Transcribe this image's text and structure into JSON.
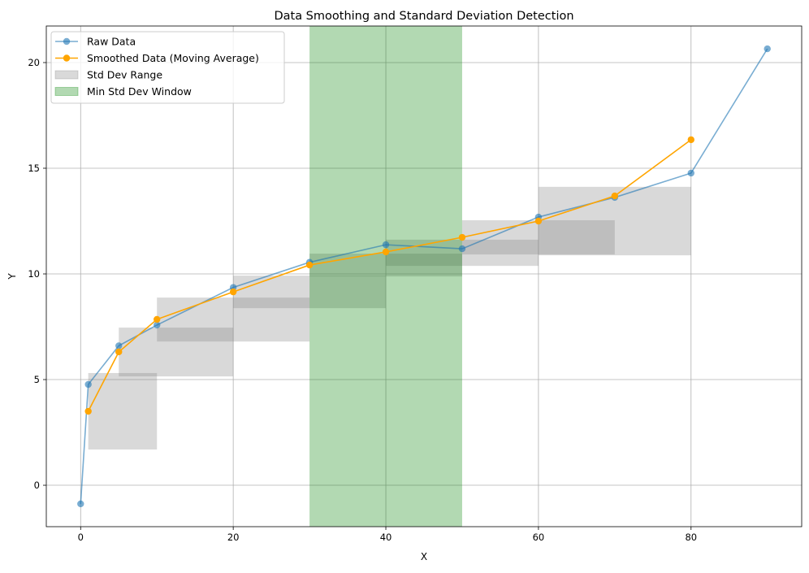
{
  "chart_data": {
    "type": "line",
    "title": "Data Smoothing and Standard Deviation Detection",
    "xlabel": "X",
    "ylabel": "Y",
    "xlim": [
      -4.5,
      94.5
    ],
    "ylim": [
      -1.96,
      21.73
    ],
    "xticks": [
      0,
      20,
      40,
      60,
      80
    ],
    "yticks": [
      0,
      5,
      10,
      15,
      20
    ],
    "grid": true,
    "legend_position": "top-left",
    "series": [
      {
        "name": "Raw Data",
        "color": "#1f77b4",
        "opacity": 0.6,
        "x": [
          0,
          1,
          5,
          10,
          20,
          30,
          40,
          50,
          60,
          70,
          80,
          90
        ],
        "y": [
          -0.88,
          4.77,
          6.6,
          7.58,
          9.36,
          10.55,
          11.38,
          11.19,
          12.69,
          13.62,
          14.77,
          20.65
        ]
      },
      {
        "name": "Smoothed Data (Moving Average)",
        "color": "#ffa500",
        "opacity": 1,
        "x": [
          1,
          5,
          10,
          20,
          30,
          40,
          50,
          60,
          70,
          80
        ],
        "y": [
          3.5,
          6.31,
          7.85,
          9.15,
          10.42,
          11.04,
          11.73,
          12.5,
          13.69,
          16.35
        ]
      }
    ],
    "std_dev_ranges": {
      "name": "Std Dev Range",
      "color": "#808080",
      "opacity": 0.3,
      "ranges": [
        {
          "x0": 1,
          "x1": 10,
          "y0": 1.69,
          "y1": 5.31
        },
        {
          "x0": 5,
          "x1": 20,
          "y0": 5.15,
          "y1": 7.46
        },
        {
          "x0": 10,
          "x1": 30,
          "y0": 6.8,
          "y1": 8.88
        },
        {
          "x0": 20,
          "x1": 40,
          "y0": 8.38,
          "y1": 9.92
        },
        {
          "x0": 30,
          "x1": 50,
          "y0": 9.88,
          "y1": 10.96
        },
        {
          "x0": 40,
          "x1": 60,
          "y0": 10.38,
          "y1": 11.62
        },
        {
          "x0": 50,
          "x1": 70,
          "y0": 10.92,
          "y1": 12.54
        },
        {
          "x0": 60,
          "x1": 80,
          "y0": 10.88,
          "y1": 14.12
        }
      ]
    },
    "min_std_window": {
      "name": "Min Std Dev Window",
      "color": "#008000",
      "opacity": 0.3,
      "x0": 30,
      "x1": 50
    }
  }
}
